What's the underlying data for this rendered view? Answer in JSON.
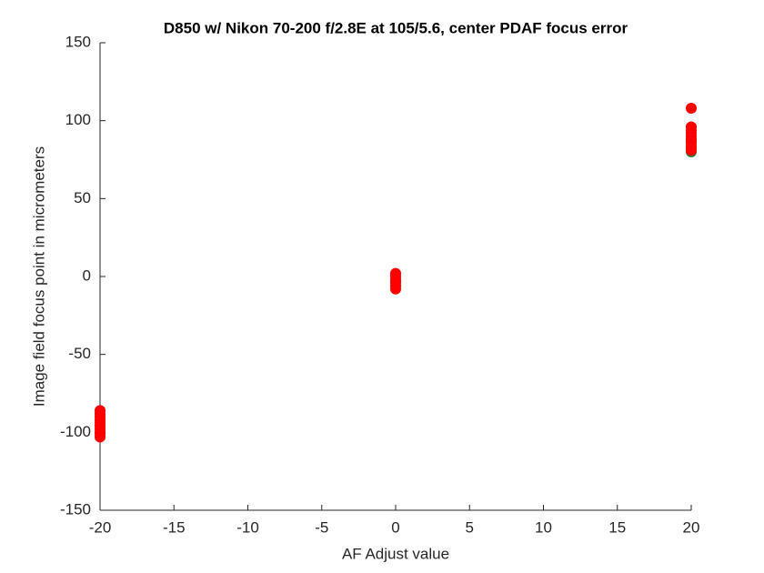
{
  "chart_data": {
    "type": "scatter",
    "title": "D850 w/ Nikon 70-200 f/2.8E at 105/5.6, center PDAF focus error",
    "x_label": "AF Adjust value",
    "y_label": "Image field focus point in micrometers",
    "xlim": [
      -20,
      20
    ],
    "xticks": [
      -20,
      -15,
      -10,
      -5,
      0,
      5,
      10,
      15,
      20
    ],
    "ylim": [
      -150,
      150
    ],
    "yticks": [
      -150,
      -100,
      -50,
      0,
      50,
      100,
      150
    ],
    "grid": false,
    "series": [
      {
        "color": "#1a7a2a",
        "x": [
          20,
          20,
          0
        ],
        "values": [
          80,
          87,
          -3
        ]
      },
      {
        "color": "#ff0000",
        "x": [
          -20,
          -20,
          -20,
          -20,
          -20,
          -20,
          -20,
          -20,
          -20,
          -20,
          0,
          0,
          0,
          0,
          0,
          0,
          20,
          20,
          20,
          20,
          20,
          20,
          20,
          20,
          20,
          20
        ],
        "values": [
          -86,
          -88,
          -90,
          -92,
          -94,
          -96,
          -98,
          -100,
          -101,
          -103,
          2,
          0,
          -2,
          -4,
          -6,
          -8,
          108,
          96,
          94,
          92,
          90,
          88,
          86,
          84,
          82,
          81
        ]
      }
    ]
  }
}
